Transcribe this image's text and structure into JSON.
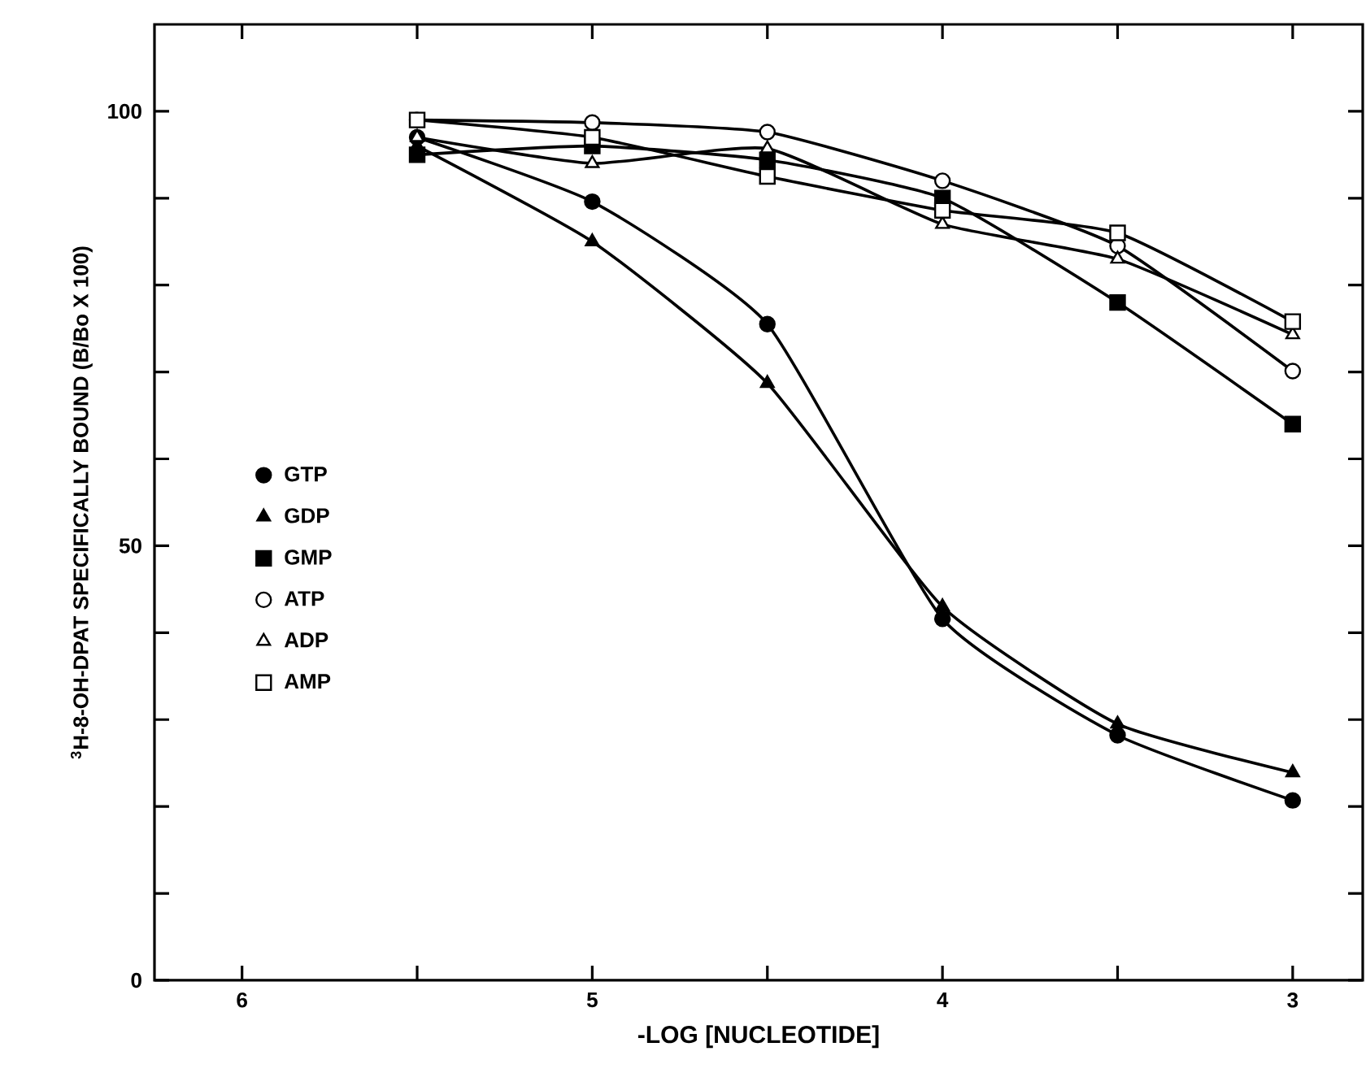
{
  "chart_data": {
    "type": "line",
    "xlabel": "-LOG [NUCLEOTIDE]",
    "ylabel": "$^{3}$H-8-OH-DPAT SPECIFICALLY BOUND (B/Bo X 100)",
    "x": [
      5.5,
      5,
      4.5,
      4,
      3.5,
      3
    ],
    "xlim": [
      6.25,
      2.8
    ],
    "ylim": [
      0,
      110
    ],
    "xticks": [
      6,
      {
        "value": 5.5,
        "label": null
      },
      5,
      {
        "value": 4.5,
        "label": null
      },
      4,
      {
        "value": 3.5,
        "label": null
      },
      3
    ],
    "yticks": [
      0,
      {
        "value": 10,
        "label": null
      },
      {
        "value": 20,
        "label": null
      },
      {
        "value": 30,
        "label": null
      },
      {
        "value": 40,
        "label": null
      },
      50,
      {
        "value": 60,
        "label": null
      },
      {
        "value": 70,
        "label": null
      },
      {
        "value": 80,
        "label": null
      },
      {
        "value": 90,
        "label": null
      },
      100
    ],
    "legend": "left",
    "grid": false,
    "line_style": "solid",
    "series": [
      {
        "name": "GTP",
        "color": "#000000",
        "marker": "circle",
        "values": [
          97,
          89.6,
          75.5,
          41.6,
          28.2,
          20.7
        ]
      },
      {
        "name": "GDP",
        "color": "#000000",
        "marker": "triangle",
        "values": [
          96,
          85,
          68.7,
          43,
          29.5,
          23.9
        ]
      },
      {
        "name": "GMP",
        "color": "#000000",
        "marker": "square",
        "values": [
          95,
          96,
          94.4,
          90,
          78,
          64
        ]
      },
      {
        "name": "ATP",
        "color": "#ffffff",
        "marker": "circle",
        "values": [
          99,
          98.7,
          97.6,
          92,
          84.5,
          70.1
        ]
      },
      {
        "name": "ADP",
        "color": "#ffffff",
        "marker": "triangle",
        "values": [
          97,
          94,
          95.7,
          87,
          83,
          74.3
        ]
      },
      {
        "name": "AMP",
        "color": "#ffffff",
        "marker": "square",
        "values": [
          99,
          97,
          92.5,
          88.6,
          86,
          75.8
        ]
      }
    ]
  }
}
